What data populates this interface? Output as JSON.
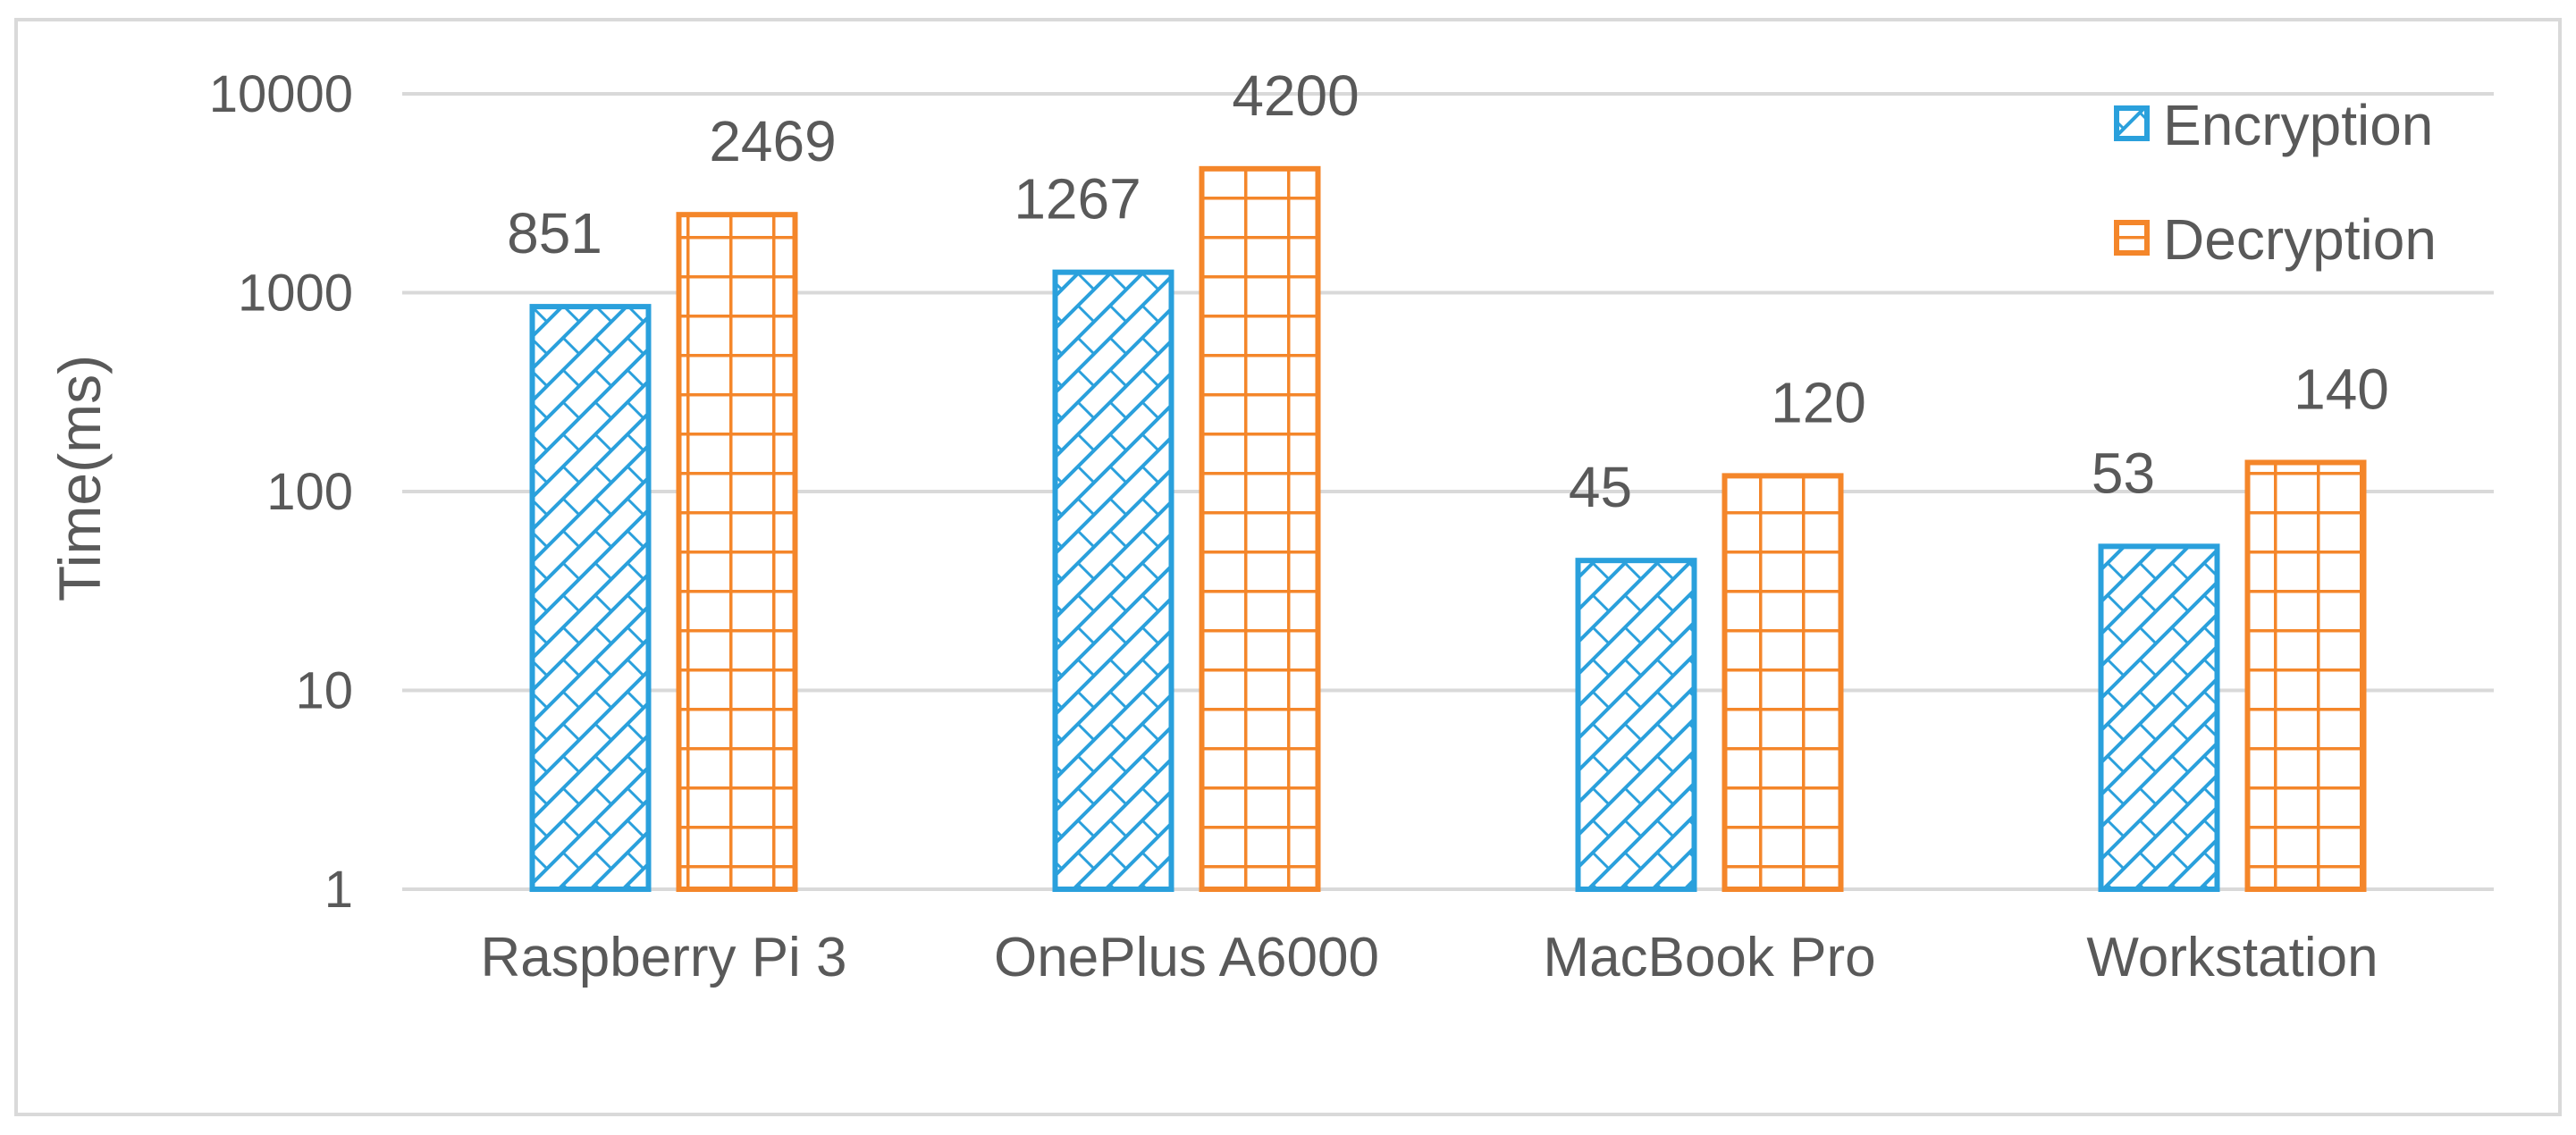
{
  "chart_data": {
    "type": "bar",
    "title": "",
    "xlabel": "",
    "ylabel": "Time(ms)",
    "yscale": "log",
    "ylim": [
      1,
      10000
    ],
    "yticks": [
      1,
      10,
      100,
      1000,
      10000
    ],
    "ytick_labels": [
      "1",
      "10",
      "100",
      "1000",
      "10000"
    ],
    "grid": true,
    "legend_position": "top-right",
    "categories": [
      "Raspberry Pi 3",
      "OnePlus A6000",
      "MacBook Pro",
      "Workstation"
    ],
    "series": [
      {
        "name": "Encryption",
        "color": "#2aa0dc",
        "pattern": "diagonal-brick",
        "values": [
          851,
          1267,
          45,
          53
        ],
        "labels": [
          "851",
          "1267",
          "45",
          "53"
        ]
      },
      {
        "name": "Decryption",
        "color": "#f4862a",
        "pattern": "grid",
        "values": [
          2469,
          4200,
          120,
          140
        ],
        "labels": [
          "2469",
          "4200",
          "120",
          "140"
        ]
      }
    ]
  }
}
